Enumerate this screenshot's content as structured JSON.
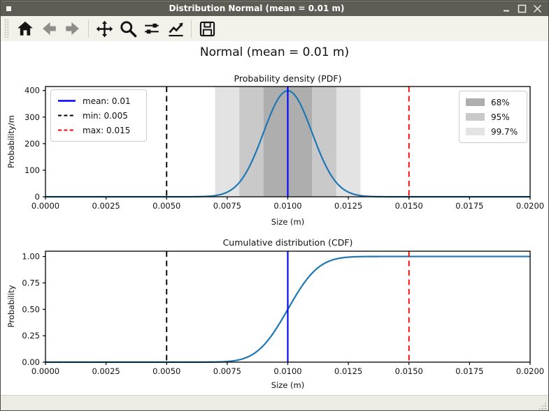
{
  "window": {
    "title": "Distribution Normal (mean = 0.01 m)",
    "controls": [
      {
        "name": "minimize"
      },
      {
        "name": "maximize"
      },
      {
        "name": "close"
      }
    ]
  },
  "toolbar": {
    "tools": [
      {
        "name": "home"
      },
      {
        "name": "back"
      },
      {
        "name": "forward"
      },
      {
        "name": "pan"
      },
      {
        "name": "zoom"
      },
      {
        "name": "configure-subplots"
      },
      {
        "name": "edit-parameters"
      },
      {
        "name": "save"
      }
    ]
  },
  "figure": {
    "suptitle": "Normal (mean = 0.01 m)"
  },
  "chart_data": [
    {
      "type": "line",
      "curve": "pdf",
      "title": "Probability density (PDF)",
      "xlabel": "Size (m)",
      "ylabel": "Probability/m",
      "xlim": [
        0.0,
        0.02
      ],
      "ylim": [
        0,
        415
      ],
      "grid": false,
      "x_tick_values": [
        0.0,
        0.0025,
        0.005,
        0.0075,
        0.01,
        0.0125,
        0.015,
        0.0175,
        0.02
      ],
      "x_tick_labels": [
        "0.0000",
        "0.0025",
        "0.0050",
        "0.0075",
        "0.0100",
        "0.0125",
        "0.0150",
        "0.0175",
        "0.0200"
      ],
      "y_tick_values": [
        0,
        100,
        200,
        300,
        400
      ],
      "y_tick_labels": [
        "0",
        "100",
        "200",
        "300",
        "400"
      ],
      "line_color": "#1f77b4",
      "distribution": {
        "family": "normal",
        "mean": 0.01,
        "sigma": 0.001,
        "peak_density": 398.9
      },
      "vlines": [
        {
          "label": "mean: 0.01",
          "x": 0.01,
          "color": "#0000ff",
          "style": "solid"
        },
        {
          "label": "min: 0.005",
          "x": 0.005,
          "color": "#000000",
          "style": "dashed"
        },
        {
          "label": "max: 0.015",
          "x": 0.015,
          "color": "#ff0000",
          "style": "dashed"
        }
      ],
      "bands": [
        {
          "label": "68%",
          "sigmas": 1,
          "color": "#aeaeae"
        },
        {
          "label": "95%",
          "sigmas": 2,
          "color": "#c9c9c9"
        },
        {
          "label": "99.7%",
          "sigmas": 3,
          "color": "#e3e3e3"
        }
      ],
      "legend_loc": "upper left",
      "bands_legend_loc": "upper right"
    },
    {
      "type": "line",
      "curve": "cdf",
      "title": "Cumulative distribution (CDF)",
      "xlabel": "Size (m)",
      "ylabel": "Probability",
      "xlim": [
        0.0,
        0.02
      ],
      "ylim": [
        0,
        1.05
      ],
      "grid": false,
      "x_tick_values": [
        0.0,
        0.0025,
        0.005,
        0.0075,
        0.01,
        0.0125,
        0.015,
        0.0175,
        0.02
      ],
      "x_tick_labels": [
        "0.0000",
        "0.0025",
        "0.0050",
        "0.0075",
        "0.0100",
        "0.0125",
        "0.0150",
        "0.0175",
        "0.0200"
      ],
      "y_tick_values": [
        0,
        0.25,
        0.5,
        0.75,
        1.0
      ],
      "y_tick_labels": [
        "0.00",
        "0.25",
        "0.50",
        "0.75",
        "1.00"
      ],
      "line_color": "#1f77b4",
      "distribution": {
        "family": "normal",
        "mean": 0.01,
        "sigma": 0.001
      },
      "vlines": [
        {
          "x": 0.01,
          "color": "#0000ff",
          "style": "solid"
        },
        {
          "x": 0.005,
          "color": "#000000",
          "style": "dashed"
        },
        {
          "x": 0.015,
          "color": "#ff0000",
          "style": "dashed"
        }
      ]
    }
  ]
}
